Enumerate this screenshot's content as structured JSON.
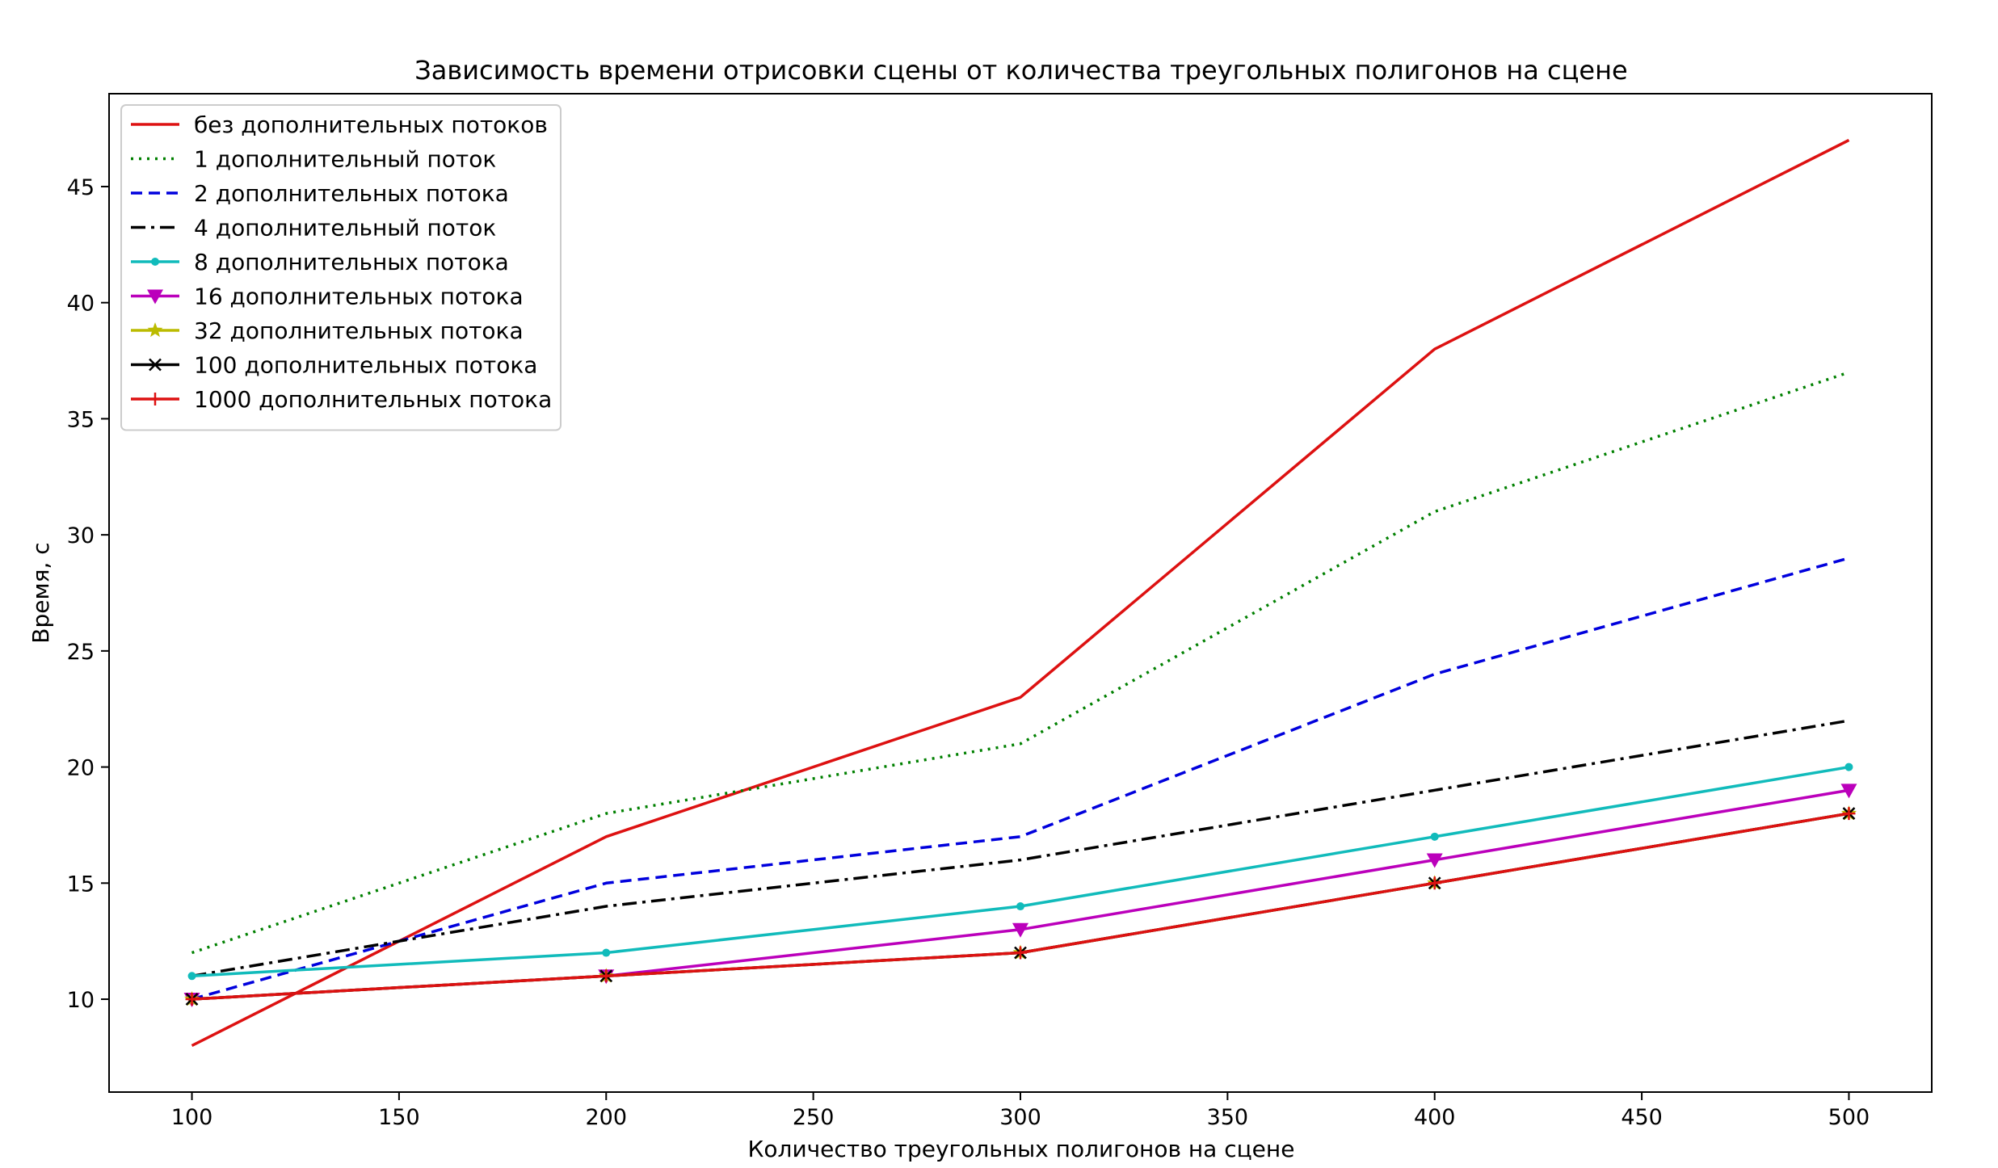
{
  "chart_data": {
    "type": "line",
    "title": "Зависимость времени отрисовки сцены от количества треугольных полигонов на сцене",
    "xlabel": "Количество треугольных полигонов на сцене",
    "ylabel": "Время, с",
    "xlim": [
      80,
      520
    ],
    "ylim": [
      6,
      49
    ],
    "x_ticks": [
      100,
      150,
      200,
      250,
      300,
      350,
      400,
      450,
      500
    ],
    "y_ticks": [
      10,
      15,
      20,
      25,
      30,
      35,
      40,
      45
    ],
    "x": [
      100,
      200,
      300,
      400,
      500
    ],
    "grid": false,
    "legend_position": "top-left",
    "series": [
      {
        "name": "без дополнительных потоков",
        "values": [
          8,
          17,
          23,
          38,
          47
        ],
        "color": "#dd1111",
        "style": "solid",
        "marker": "none"
      },
      {
        "name": "1 дополнительный поток",
        "values": [
          12,
          18,
          21,
          31,
          37
        ],
        "color": "#008000",
        "style": "dotted",
        "marker": "none"
      },
      {
        "name": "2 дополнительных потока",
        "values": [
          10,
          15,
          17,
          24,
          29
        ],
        "color": "#0000dd",
        "style": "dashed",
        "marker": "none"
      },
      {
        "name": "4 дополнительный поток",
        "values": [
          11,
          14,
          16,
          19,
          22
        ],
        "color": "#000000",
        "style": "dashdot",
        "marker": "none"
      },
      {
        "name": "8 дополнительных потока",
        "values": [
          11,
          12,
          14,
          17,
          20
        ],
        "color": "#11bbbb",
        "style": "solid",
        "marker": "dot"
      },
      {
        "name": "16 дополнительных потока",
        "values": [
          10,
          11,
          13,
          16,
          19
        ],
        "color": "#bb00bb",
        "style": "solid",
        "marker": "triangle-down"
      },
      {
        "name": "32 дополнительных потока",
        "values": [
          10,
          11,
          12,
          15,
          18
        ],
        "color": "#bbbb00",
        "style": "solid",
        "marker": "star"
      },
      {
        "name": "100 дополнительных потока",
        "values": [
          10,
          11,
          12,
          15,
          18
        ],
        "color": "#000000",
        "style": "solid",
        "marker": "x"
      },
      {
        "name": "1000 дополнительных потока",
        "values": [
          10,
          11,
          12,
          15,
          18
        ],
        "color": "#dd1111",
        "style": "solid",
        "marker": "plus"
      }
    ]
  }
}
